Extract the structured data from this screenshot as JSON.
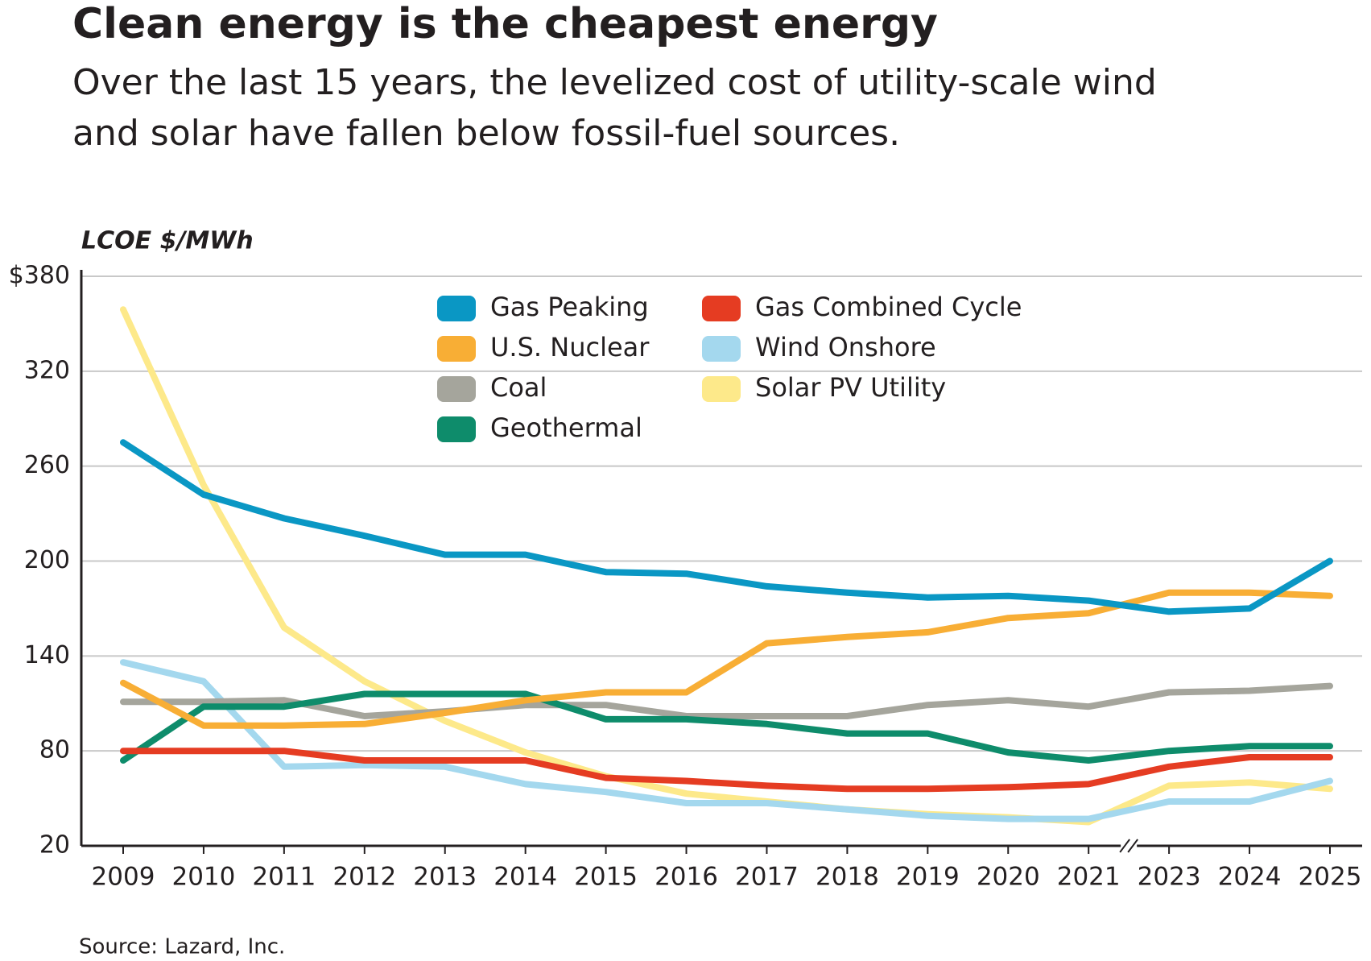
{
  "chart_data": {
    "type": "line",
    "title": "Clean energy is the cheapest energy",
    "subtitle": [
      "Over the last 15 years, the levelized cost of utility-scale wind",
      "and solar have fallen below fossil-fuel sources."
    ],
    "y_label": "LCOE $/MWh",
    "source": "Source: Lazard, Inc.",
    "categories": [
      "2009",
      "2010",
      "2011",
      "2012",
      "2013",
      "2014",
      "2015",
      "2016",
      "2017",
      "2018",
      "2019",
      "2020",
      "2021",
      "2023",
      "2024",
      "2025"
    ],
    "ylim": [
      20,
      380
    ],
    "yticks": [
      20,
      80,
      140,
      200,
      260,
      320,
      {
        "value": 380,
        "label": "$380"
      }
    ],
    "grid": true,
    "series": [
      {
        "name": "Gas Peaking",
        "color": "#0a97c4",
        "values": [
          275,
          242,
          227,
          216,
          204,
          204,
          193,
          192,
          184,
          180,
          177,
          178,
          175,
          168,
          170,
          200
        ]
      },
      {
        "name": "U.S. Nuclear",
        "color": "#f8ae35",
        "values": [
          123,
          96,
          96,
          97,
          104,
          112,
          117,
          117,
          148,
          152,
          155,
          164,
          167,
          180,
          180,
          178
        ]
      },
      {
        "name": "Coal",
        "color": "#a5a59c",
        "values": [
          111,
          111,
          112,
          102,
          105,
          109,
          109,
          102,
          102,
          102,
          109,
          112,
          108,
          117,
          118,
          121
        ]
      },
      {
        "name": "Geothermal",
        "color": "#0e8c6b",
        "values": [
          74,
          108,
          108,
          116,
          116,
          116,
          100,
          100,
          97,
          91,
          91,
          79,
          74,
          80,
          83,
          83
        ]
      },
      {
        "name": "Gas Combined Cycle",
        "color": "#e53c22",
        "values": [
          80,
          80,
          80,
          74,
          74,
          74,
          63,
          61,
          58,
          56,
          56,
          57,
          59,
          70,
          76,
          76
        ]
      },
      {
        "name": "Wind Onshore",
        "color": "#a4d8ee",
        "values": [
          136,
          124,
          70,
          71,
          70,
          59,
          54,
          47,
          47,
          43,
          39,
          37,
          37,
          48,
          48,
          61
        ]
      },
      {
        "name": "Solar PV Utility",
        "color": "#fde98a",
        "values": [
          359,
          248,
          158,
          124,
          99,
          79,
          64,
          53,
          48,
          43,
          40,
          38,
          35,
          58,
          60,
          56
        ]
      }
    ]
  }
}
